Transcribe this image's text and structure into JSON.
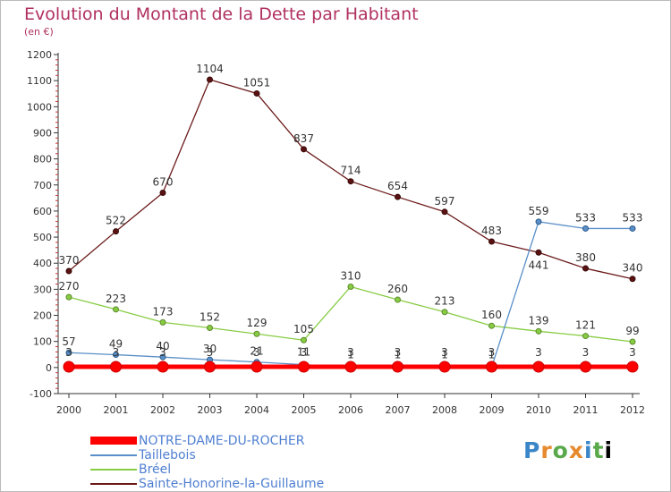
{
  "title": "Evolution du Montant de la Dette par Habitant",
  "subtitle": "(en €)",
  "logo_text": "Proxiti",
  "chart_data": {
    "type": "line",
    "categories": [
      "2000",
      "2001",
      "2002",
      "2003",
      "2004",
      "2005",
      "2006",
      "2007",
      "2008",
      "2009",
      "2010",
      "2011",
      "2012"
    ],
    "ylim": [
      -100,
      1200
    ],
    "yticks": [
      -100,
      0,
      100,
      200,
      300,
      400,
      500,
      600,
      700,
      800,
      900,
      1000,
      1100,
      1200
    ],
    "grid": false,
    "legend_position": "bottom-left",
    "series": [
      {
        "name": "NOTRE-DAME-DU-ROCHER",
        "color": "#ff0000",
        "values": [
          3,
          3,
          3,
          3,
          3,
          3,
          3,
          3,
          3,
          3,
          3,
          3,
          3
        ],
        "labels": [
          "3",
          "3",
          "3",
          "3",
          "3",
          "3",
          "3",
          "3",
          "3",
          "3",
          "3",
          "3",
          "3"
        ]
      },
      {
        "name": "Taillebois",
        "color": "#5a8fc8",
        "values": [
          57,
          49,
          40,
          30,
          21,
          11,
          1,
          1,
          1,
          1,
          559,
          533,
          533
        ],
        "labels": [
          "57",
          "49",
          "40",
          "30",
          "21",
          "11",
          "1",
          "1",
          "1",
          "1",
          "559",
          "533",
          "533"
        ]
      },
      {
        "name": "Bréel",
        "color": "#88cc44",
        "values": [
          270,
          223,
          173,
          152,
          129,
          105,
          310,
          260,
          213,
          160,
          139,
          121,
          99
        ],
        "labels": [
          "270",
          "223",
          "173",
          "152",
          "129",
          "105",
          "310",
          "260",
          "213",
          "160",
          "139",
          "121",
          "99"
        ]
      },
      {
        "name": "Sainte-Honorine-la-Guillaume",
        "color": "#6b1a1a",
        "values": [
          370,
          522,
          670,
          1104,
          1051,
          837,
          714,
          654,
          597,
          483,
          441,
          380,
          340
        ],
        "labels": [
          "370",
          "522",
          "670",
          "1104",
          "1051",
          "837",
          "714",
          "654",
          "597",
          "483",
          "441",
          "380",
          "340"
        ]
      }
    ]
  }
}
